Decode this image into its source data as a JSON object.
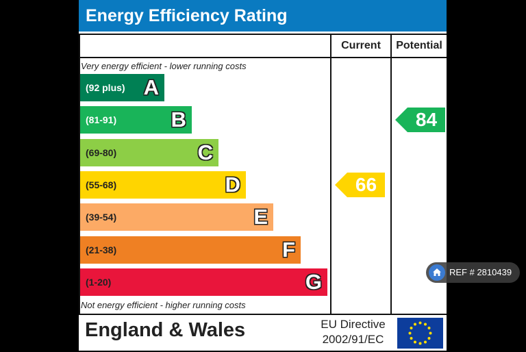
{
  "chart_data": {
    "type": "bar",
    "title": "Energy Efficiency Rating",
    "columns": {
      "current": "Current",
      "potential": "Potential"
    },
    "top_note": "Very energy efficient - lower running costs",
    "bottom_note": "Not energy efficient - higher running costs",
    "bands": [
      {
        "letter": "A",
        "range": "(92 plus)",
        "color": "#008054",
        "text_color": "#ffffff"
      },
      {
        "letter": "B",
        "range": "(81-91)",
        "color": "#19b459",
        "text_color": "#ffffff"
      },
      {
        "letter": "C",
        "range": "(69-80)",
        "color": "#8dce46",
        "text_color": "#222222"
      },
      {
        "letter": "D",
        "range": "(55-68)",
        "color": "#ffd500",
        "text_color": "#222222"
      },
      {
        "letter": "E",
        "range": "(39-54)",
        "color": "#fcaa65",
        "text_color": "#222222"
      },
      {
        "letter": "F",
        "range": "(21-38)",
        "color": "#ef8023",
        "text_color": "#222222"
      },
      {
        "letter": "G",
        "range": "(1-20)",
        "color": "#e9153b",
        "text_color": "#222222"
      }
    ],
    "current": {
      "value": 66,
      "band": "D",
      "color": "#ffd500"
    },
    "potential": {
      "value": 84,
      "band": "B",
      "color": "#19b459"
    }
  },
  "footer": {
    "region": "England & Wales",
    "directive_line1": "EU Directive",
    "directive_line2": "2002/91/EC"
  },
  "overlay": {
    "ref_label": "REF # 2810439",
    "icon": "home-icon"
  }
}
